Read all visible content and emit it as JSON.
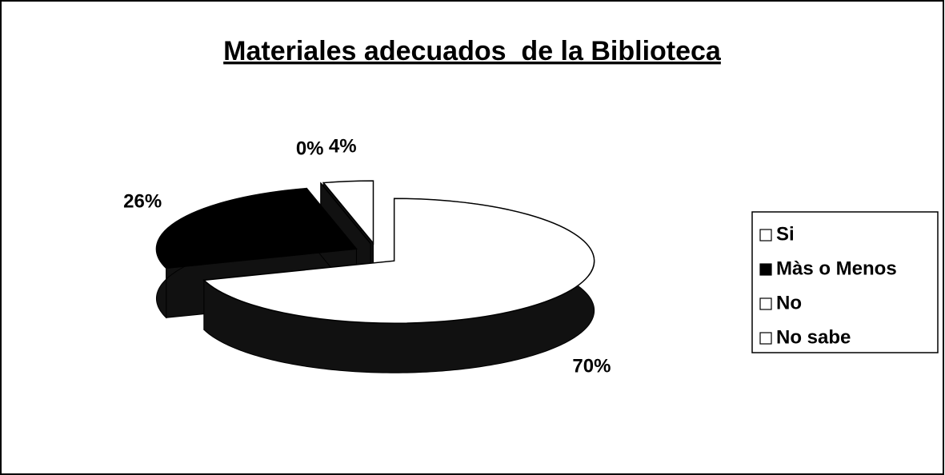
{
  "chart_data": {
    "type": "pie",
    "title": "Materiales adecuados  de la Biblioteca",
    "categories": [
      "Si",
      "Màs o Menos",
      "No",
      "No sabe"
    ],
    "values": [
      70,
      26,
      0,
      4
    ],
    "value_labels": [
      "70%",
      "26%",
      "0%",
      "4%"
    ],
    "colors": [
      "#ffffff",
      "#000000",
      "#ffffff",
      "#ffffff"
    ],
    "legend": "right"
  }
}
